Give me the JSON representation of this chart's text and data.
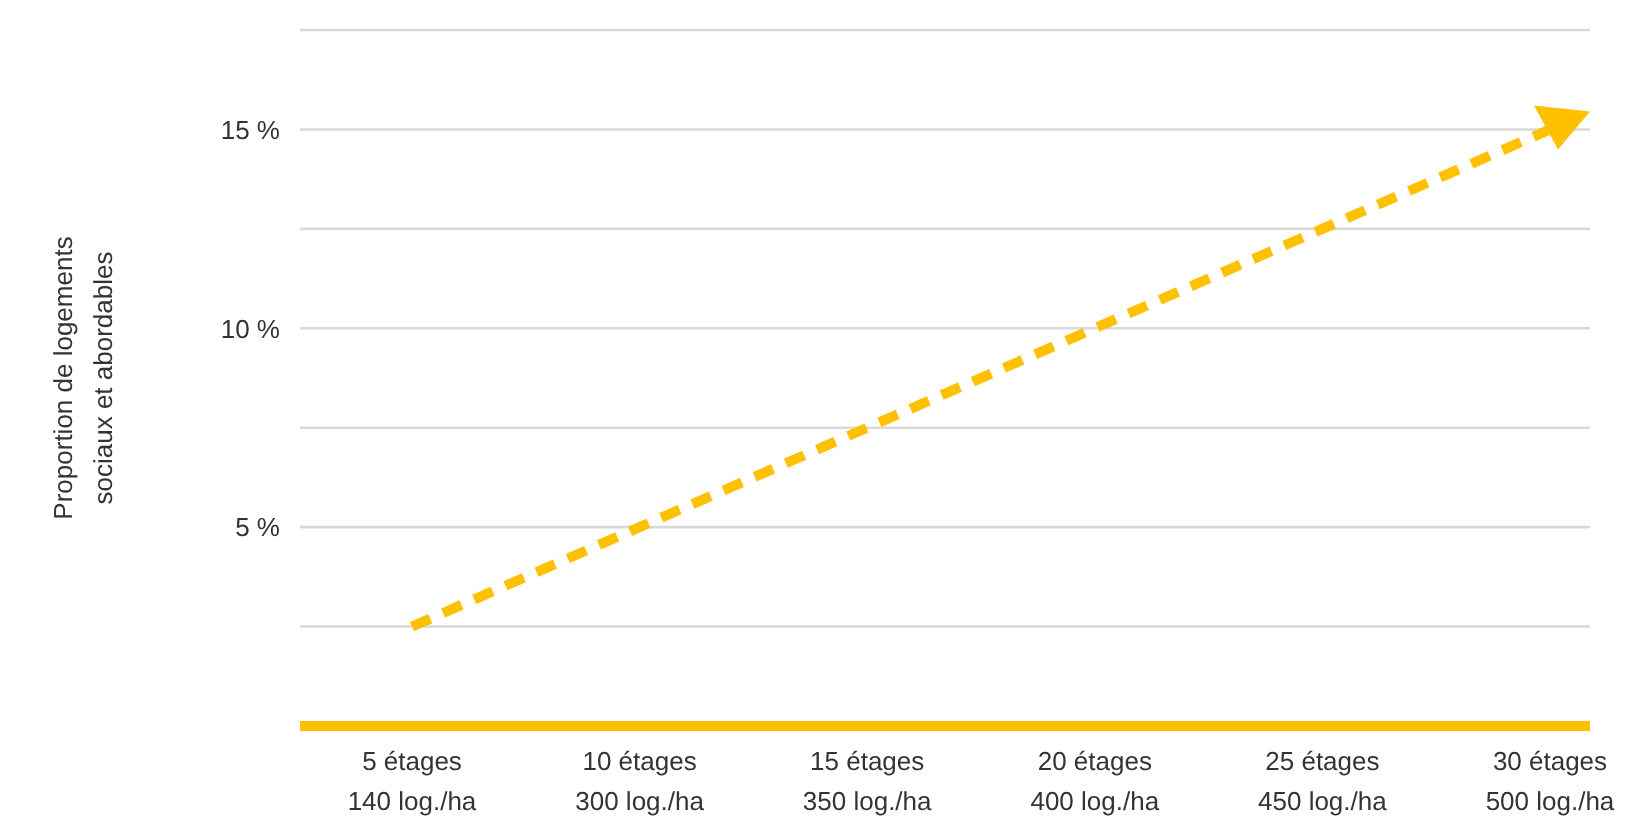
{
  "chart_data": {
    "type": "line",
    "ylabel": "Proportion de logements\nsociaux et abordables",
    "categories": [
      "5 étages\n140 log./ha",
      "10 étages\n300 log./ha",
      "15 étages\n350 log./ha",
      "20 étages\n400 log./ha",
      "25 étages\n450 log./ha",
      "30 étages\n500 log./ha"
    ],
    "series": [
      {
        "color": "#ffc000",
        "values": [
          2.5,
          5,
          7.5,
          10,
          12.5,
          15
        ]
      }
    ],
    "ylim": [
      0,
      17.5
    ],
    "yticks": [
      {
        "value": 2.5,
        "label": null
      },
      {
        "value": 5,
        "label": "5 %"
      },
      {
        "value": 7.5,
        "label": null
      },
      {
        "value": 10,
        "label": "10 %"
      },
      {
        "value": 12.5,
        "label": null
      },
      {
        "value": 15,
        "label": "15 %"
      },
      {
        "value": 17.5,
        "label": null
      }
    ],
    "grid": "y",
    "legend": false,
    "marker": "none",
    "line_style": "dashed"
  }
}
